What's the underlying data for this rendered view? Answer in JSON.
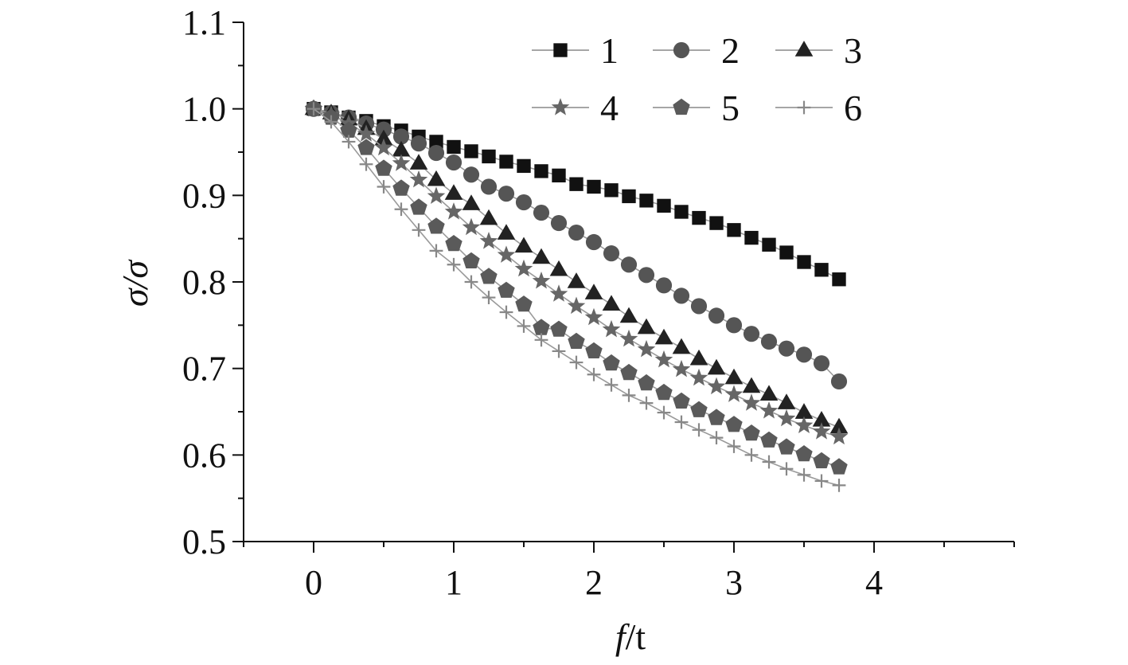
{
  "chart_data": {
    "type": "line",
    "title": "",
    "xlabel": "f/t",
    "ylabel": "σ/σ",
    "xlim": [
      -0.5,
      5.0
    ],
    "ylim": [
      0.5,
      1.1
    ],
    "xticks": [
      0,
      1,
      2,
      3,
      4
    ],
    "yticks": [
      0.5,
      0.6,
      0.7,
      0.8,
      0.9,
      1.0,
      1.1
    ],
    "xtick_labels": [
      "0",
      "1",
      "2",
      "3",
      "4"
    ],
    "ytick_labels": [
      "0.5",
      "0.6",
      "0.7",
      "0.8",
      "0.9",
      "1.0",
      "1.1"
    ],
    "grid": false,
    "legend_position": "top-right",
    "x": [
      0,
      0.125,
      0.25,
      0.375,
      0.5,
      0.625,
      0.75,
      0.875,
      1.0,
      1.125,
      1.25,
      1.375,
      1.5,
      1.625,
      1.75,
      1.875,
      2.0,
      2.125,
      2.25,
      2.375,
      2.5,
      2.625,
      2.75,
      2.875,
      3.0,
      3.125,
      3.25,
      3.375,
      3.5,
      3.625,
      3.75
    ],
    "series": [
      {
        "name": "1",
        "marker": "square",
        "color": "#111111",
        "values": [
          1.0,
          0.996,
          0.99,
          0.986,
          0.98,
          0.975,
          0.968,
          0.962,
          0.956,
          0.951,
          0.945,
          0.939,
          0.934,
          0.928,
          0.923,
          0.913,
          0.91,
          0.906,
          0.899,
          0.894,
          0.888,
          0.881,
          0.874,
          0.868,
          0.86,
          0.851,
          0.843,
          0.834,
          0.823,
          0.814,
          0.803
        ]
      },
      {
        "name": "2",
        "marker": "circle",
        "color": "#555555",
        "values": [
          1.0,
          0.995,
          0.99,
          0.983,
          0.976,
          0.968,
          0.96,
          0.949,
          0.938,
          0.924,
          0.91,
          0.902,
          0.892,
          0.88,
          0.868,
          0.857,
          0.846,
          0.833,
          0.82,
          0.808,
          0.796,
          0.784,
          0.772,
          0.761,
          0.75,
          0.74,
          0.731,
          0.723,
          0.716,
          0.706,
          0.685
        ]
      },
      {
        "name": "3",
        "marker": "triangle",
        "color": "#222222",
        "values": [
          1.0,
          0.995,
          0.988,
          0.977,
          0.965,
          0.952,
          0.937,
          0.918,
          0.902,
          0.89,
          0.873,
          0.856,
          0.841,
          0.828,
          0.814,
          0.8,
          0.787,
          0.774,
          0.76,
          0.747,
          0.735,
          0.724,
          0.711,
          0.7,
          0.689,
          0.679,
          0.67,
          0.66,
          0.649,
          0.64,
          0.632
        ]
      },
      {
        "name": "4",
        "marker": "star",
        "color": "#666666",
        "values": [
          1.0,
          0.993,
          0.983,
          0.971,
          0.955,
          0.937,
          0.918,
          0.899,
          0.881,
          0.863,
          0.847,
          0.831,
          0.815,
          0.801,
          0.786,
          0.772,
          0.759,
          0.745,
          0.734,
          0.722,
          0.71,
          0.699,
          0.689,
          0.679,
          0.67,
          0.66,
          0.651,
          0.642,
          0.634,
          0.627,
          0.621
        ]
      },
      {
        "name": "5",
        "marker": "pentagon",
        "color": "#5a5a5a",
        "values": [
          1.0,
          0.99,
          0.975,
          0.955,
          0.931,
          0.908,
          0.886,
          0.864,
          0.844,
          0.824,
          0.806,
          0.79,
          0.774,
          0.747,
          0.745,
          0.731,
          0.72,
          0.706,
          0.695,
          0.683,
          0.672,
          0.662,
          0.652,
          0.643,
          0.635,
          0.625,
          0.617,
          0.609,
          0.601,
          0.593,
          0.586
        ]
      },
      {
        "name": "6",
        "marker": "plus",
        "color": "#888888",
        "values": [
          1.0,
          0.985,
          0.962,
          0.936,
          0.91,
          0.884,
          0.86,
          0.836,
          0.82,
          0.8,
          0.782,
          0.765,
          0.749,
          0.733,
          0.72,
          0.707,
          0.693,
          0.681,
          0.669,
          0.66,
          0.649,
          0.638,
          0.629,
          0.62,
          0.61,
          0.6,
          0.592,
          0.584,
          0.577,
          0.57,
          0.565
        ]
      }
    ]
  }
}
